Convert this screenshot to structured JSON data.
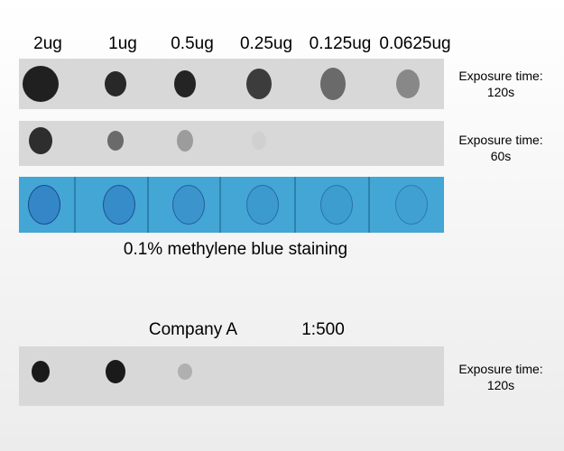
{
  "amounts": [
    "2ug",
    "1ug",
    "0.5ug",
    "0.25ug",
    "0.125ug",
    "0.0625ug"
  ],
  "blots": [
    {
      "exposure_label": "Exposure time:",
      "exposure_value": "120s",
      "intensities": [
        0.92,
        0.88,
        0.9,
        0.78,
        0.55,
        0.4
      ]
    },
    {
      "exposure_label": "Exposure time:",
      "exposure_value": "60s",
      "intensities": [
        0.85,
        0.55,
        0.3,
        0.04,
        0,
        0
      ]
    }
  ],
  "staining": {
    "caption": "0.1% methylene blue staining",
    "intensities": [
      0.9,
      0.75,
      0.5,
      0.35,
      0.25,
      0.15
    ],
    "color": "#43a6d4"
  },
  "company": {
    "name": "Company A",
    "dilution": "1:500",
    "exposure_label": "Exposure time:",
    "exposure_value": "120s",
    "intensities": [
      0.95,
      0.95,
      0.2,
      0,
      0,
      0
    ]
  }
}
